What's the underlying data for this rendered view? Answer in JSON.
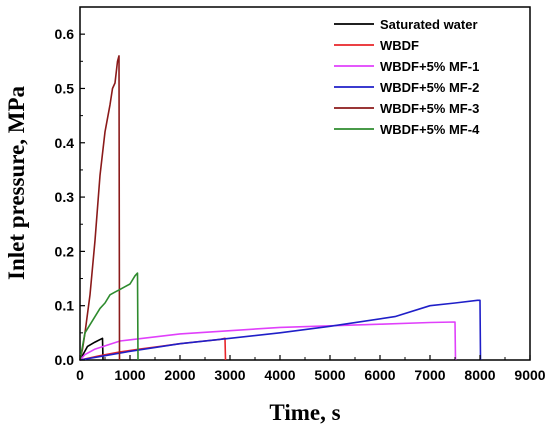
{
  "chart_data": {
    "type": "line",
    "xlabel": "Time, s",
    "ylabel": "Inlet pressure, MPa",
    "xlim": [
      0,
      9000
    ],
    "ylim": [
      0,
      0.65
    ],
    "xticks": [
      0,
      1000,
      2000,
      3000,
      4000,
      5000,
      6000,
      7000,
      8000,
      9000
    ],
    "xtick_labels": [
      "0",
      "1000",
      "2000",
      "3000",
      "4000",
      "5000",
      "6000",
      "7000",
      "8000",
      "9000"
    ],
    "yticks": [
      0.0,
      0.1,
      0.2,
      0.3,
      0.4,
      0.5,
      0.6
    ],
    "ytick_labels": [
      "0.0",
      "0.1",
      "0.2",
      "0.3",
      "0.4",
      "0.5",
      "0.6"
    ],
    "grid": false,
    "legend_position": "top-right",
    "series": [
      {
        "name": "Saturated water",
        "color": "#000000",
        "x": [
          0,
          60,
          150,
          300,
          450,
          460
        ],
        "y": [
          0,
          0.01,
          0.025,
          0.033,
          0.04,
          0
        ]
      },
      {
        "name": "WBDF",
        "color": "#e8252a",
        "x": [
          0,
          400,
          800,
          1200,
          1600,
          2000,
          2400,
          2800,
          2900,
          2910
        ],
        "y": [
          0,
          0.008,
          0.015,
          0.02,
          0.025,
          0.03,
          0.034,
          0.038,
          0.04,
          0
        ]
      },
      {
        "name": "WBDF+5% MF-1",
        "color": "#e040fb",
        "x": [
          0,
          100,
          300,
          800,
          2000,
          4000,
          6000,
          7000,
          7500,
          7510
        ],
        "y": [
          0,
          0.01,
          0.02,
          0.035,
          0.048,
          0.06,
          0.066,
          0.069,
          0.07,
          0
        ]
      },
      {
        "name": "WBDF+5% MF-2",
        "color": "#1f1fc8",
        "x": [
          0,
          500,
          1000,
          2000,
          3000,
          4000,
          5000,
          6300,
          7000,
          7500,
          7950,
          8000,
          8010
        ],
        "y": [
          0,
          0.008,
          0.016,
          0.03,
          0.04,
          0.05,
          0.062,
          0.08,
          0.1,
          0.105,
          0.11,
          0.11,
          0
        ]
      },
      {
        "name": "WBDF+5% MF-3",
        "color": "#8b1a1a",
        "x": [
          0,
          50,
          100,
          200,
          300,
          400,
          500,
          600,
          650,
          700,
          750,
          780,
          790
        ],
        "y": [
          0,
          0.02,
          0.05,
          0.12,
          0.22,
          0.34,
          0.42,
          0.47,
          0.5,
          0.51,
          0.55,
          0.56,
          0
        ]
      },
      {
        "name": "WBDF+5% MF-4",
        "color": "#2e8b2e",
        "x": [
          0,
          100,
          200,
          300,
          400,
          500,
          600,
          700,
          800,
          900,
          1000,
          1100,
          1150,
          1160
        ],
        "y": [
          0,
          0.05,
          0.065,
          0.08,
          0.095,
          0.105,
          0.12,
          0.125,
          0.13,
          0.135,
          0.14,
          0.155,
          0.16,
          0
        ]
      }
    ]
  }
}
